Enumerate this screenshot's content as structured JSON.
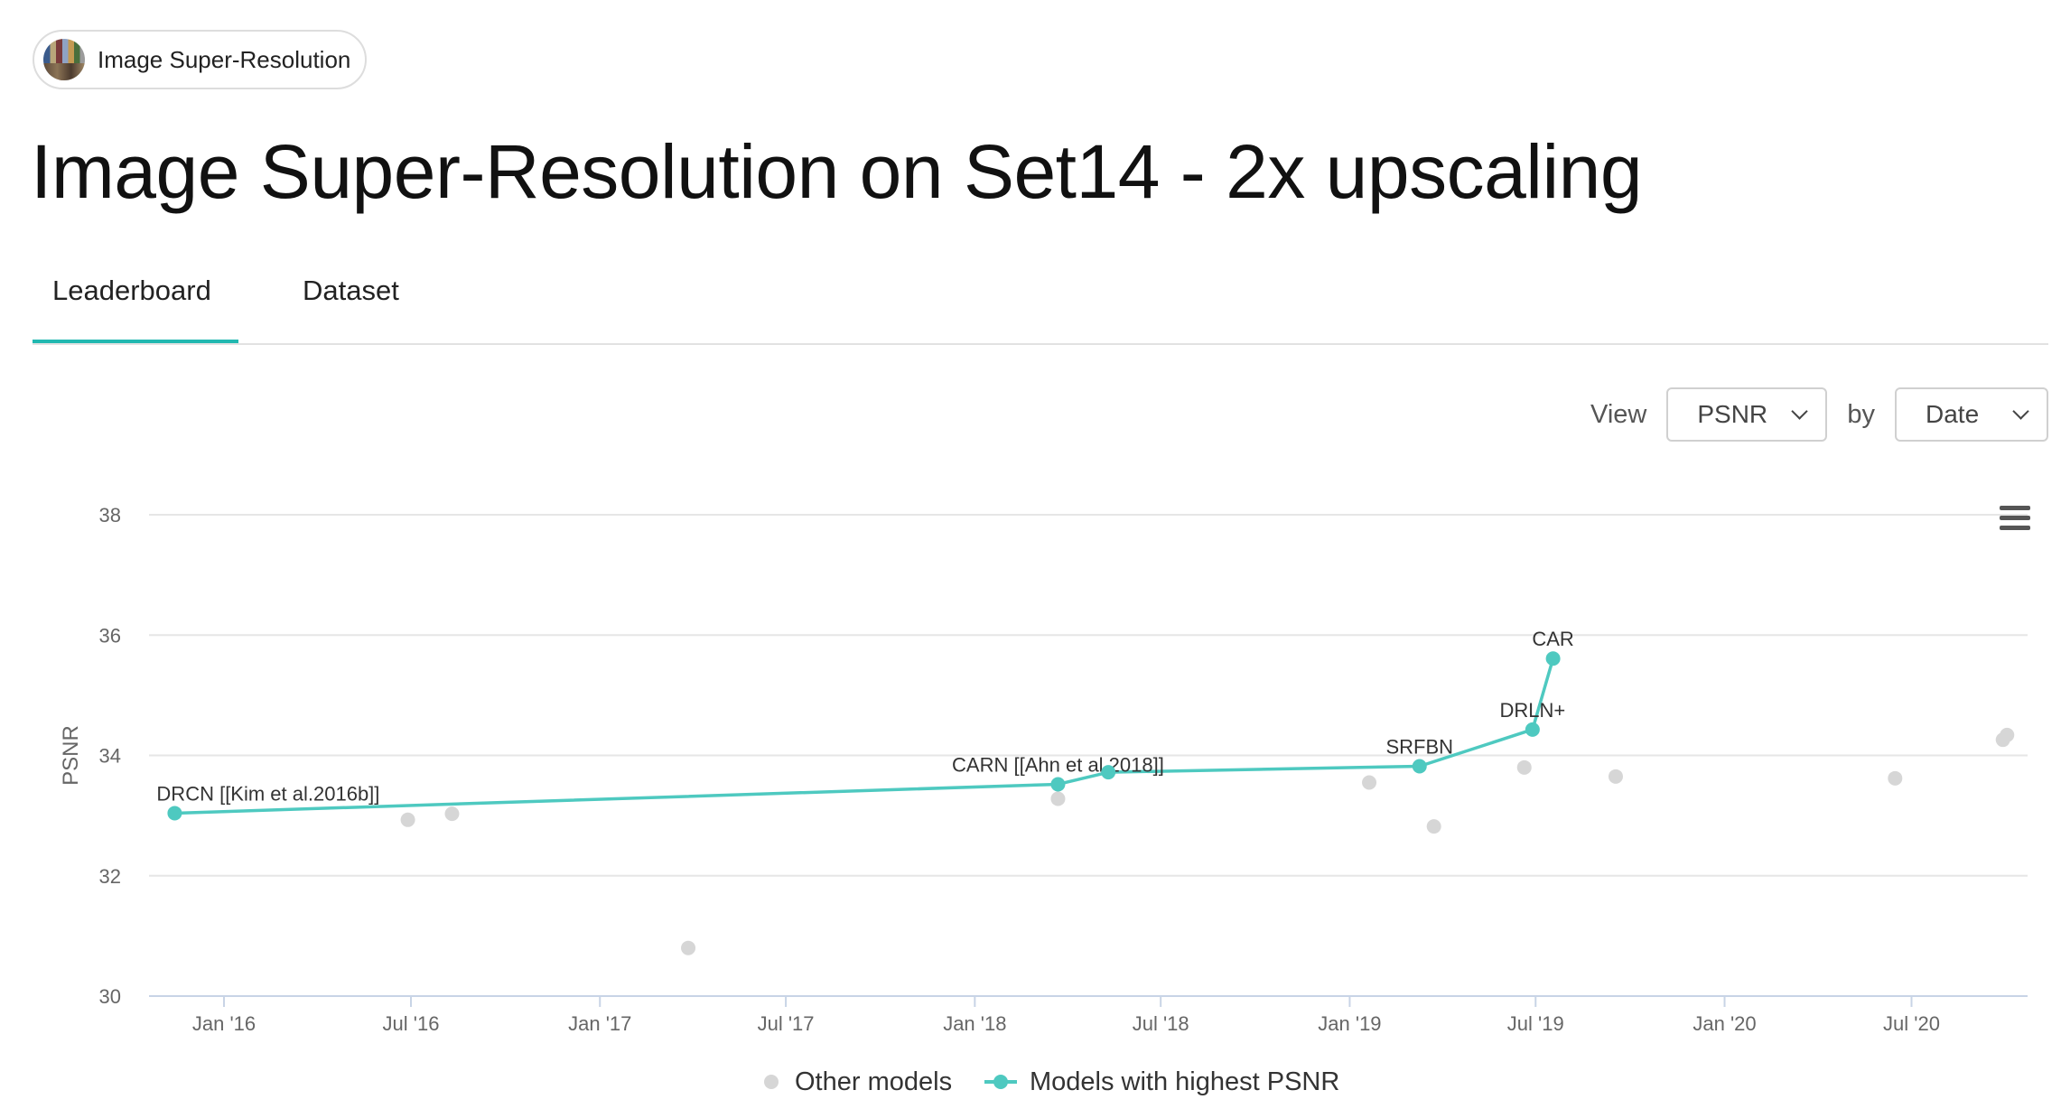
{
  "task_pill": {
    "label": "Image Super-Resolution"
  },
  "page_title": "Image Super-Resolution on Set14 - 2x upscaling",
  "tabs": [
    {
      "label": "Leaderboard",
      "active": true
    },
    {
      "label": "Dataset",
      "active": false
    }
  ],
  "controls": {
    "view_label": "View",
    "metric_value": "PSNR",
    "by_label": "by",
    "by_value": "Date"
  },
  "menu_icon": "hamburger-menu-icon",
  "colors": {
    "accent": "#4ec9c0",
    "other": "#d6d6d6",
    "tab_underline": "#21b8b0"
  },
  "legend": {
    "other": "Other models",
    "best": "Models with highest PSNR"
  },
  "chart_data": {
    "type": "scatter",
    "title": "",
    "xlabel": "",
    "ylabel": "PSNR",
    "ylim": [
      30,
      38
    ],
    "yticks": [
      30,
      32,
      34,
      36,
      38
    ],
    "xlim": [
      "2015-10-20",
      "2020-10-22"
    ],
    "xticks": [
      {
        "date": "2016-01-01",
        "label": "Jan '16"
      },
      {
        "date": "2016-07-01",
        "label": "Jul '16"
      },
      {
        "date": "2017-01-01",
        "label": "Jan '17"
      },
      {
        "date": "2017-07-01",
        "label": "Jul '17"
      },
      {
        "date": "2018-01-01",
        "label": "Jan '18"
      },
      {
        "date": "2018-07-01",
        "label": "Jul '18"
      },
      {
        "date": "2019-01-01",
        "label": "Jan '19"
      },
      {
        "date": "2019-07-01",
        "label": "Jul '19"
      },
      {
        "date": "2020-01-01",
        "label": "Jan '20"
      },
      {
        "date": "2020-07-01",
        "label": "Jul '20"
      }
    ],
    "grid": true,
    "legend_position": "bottom",
    "series": [
      {
        "name": "Models with highest PSNR",
        "line": true,
        "points": [
          {
            "x": "2015-11-14",
            "y": 33.04,
            "label": "DRCN [[Kim et al.2016b]]"
          },
          {
            "x": "2018-03-23",
            "y": 33.52,
            "label": "CARN [[Ahn et al.2018]]"
          },
          {
            "x": "2018-05-11",
            "y": 33.72,
            "label": ""
          },
          {
            "x": "2019-03-10",
            "y": 33.82,
            "label": "SRFBN"
          },
          {
            "x": "2019-06-28",
            "y": 34.43,
            "label": "DRLN+"
          },
          {
            "x": "2019-07-18",
            "y": 35.61,
            "label": "CAR"
          }
        ]
      },
      {
        "name": "Other models",
        "line": false,
        "points": [
          {
            "x": "2016-06-28",
            "y": 32.93
          },
          {
            "x": "2016-08-10",
            "y": 33.03
          },
          {
            "x": "2017-03-28",
            "y": 30.8
          },
          {
            "x": "2018-03-23",
            "y": 33.28
          },
          {
            "x": "2019-01-20",
            "y": 33.55
          },
          {
            "x": "2019-03-24",
            "y": 32.82
          },
          {
            "x": "2019-06-20",
            "y": 33.8
          },
          {
            "x": "2019-09-17",
            "y": 33.65
          },
          {
            "x": "2020-06-15",
            "y": 33.62
          },
          {
            "x": "2020-09-28",
            "y": 34.26
          },
          {
            "x": "2020-10-02",
            "y": 34.34
          }
        ]
      }
    ]
  }
}
